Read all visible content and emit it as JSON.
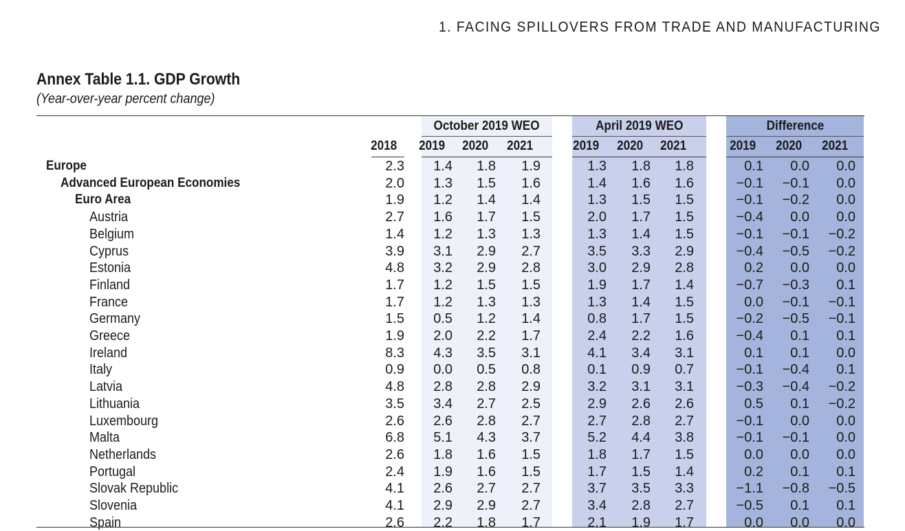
{
  "header": {
    "chapter_title": "1. FACING SPILLOVERS FROM TRADE AND MANUFACTURING"
  },
  "table": {
    "title": "Annex Table 1.1. GDP Growth",
    "subtitle": "(Year-over-year percent change)",
    "groups": {
      "october": "October 2019 WEO",
      "april": "April 2019 WEO",
      "difference": "Difference"
    },
    "year_headers": [
      "2018",
      "2019",
      "2020",
      "2021",
      "2019",
      "2020",
      "2021",
      "2019",
      "2020",
      "2021"
    ],
    "rows": [
      {
        "label": "Europe",
        "level": 0,
        "values": [
          "2.3",
          "1.4",
          "1.8",
          "1.9",
          "1.3",
          "1.8",
          "1.8",
          "0.1",
          "0.0",
          "0.0"
        ]
      },
      {
        "label": "Advanced European Economies",
        "level": 1,
        "values": [
          "2.0",
          "1.3",
          "1.5",
          "1.6",
          "1.4",
          "1.6",
          "1.6",
          "−0.1",
          "−0.1",
          "0.0"
        ]
      },
      {
        "label": "Euro Area",
        "level": 2,
        "values": [
          "1.9",
          "1.2",
          "1.4",
          "1.4",
          "1.3",
          "1.5",
          "1.5",
          "−0.1",
          "−0.2",
          "0.0"
        ]
      },
      {
        "label": "Austria",
        "level": 3,
        "values": [
          "2.7",
          "1.6",
          "1.7",
          "1.5",
          "2.0",
          "1.7",
          "1.5",
          "−0.4",
          "0.0",
          "0.0"
        ]
      },
      {
        "label": "Belgium",
        "level": 3,
        "values": [
          "1.4",
          "1.2",
          "1.3",
          "1.3",
          "1.3",
          "1.4",
          "1.5",
          "−0.1",
          "−0.1",
          "−0.2"
        ]
      },
      {
        "label": "Cyprus",
        "level": 3,
        "values": [
          "3.9",
          "3.1",
          "2.9",
          "2.7",
          "3.5",
          "3.3",
          "2.9",
          "−0.4",
          "−0.5",
          "−0.2"
        ]
      },
      {
        "label": "Estonia",
        "level": 3,
        "values": [
          "4.8",
          "3.2",
          "2.9",
          "2.8",
          "3.0",
          "2.9",
          "2.8",
          "0.2",
          "0.0",
          "0.0"
        ]
      },
      {
        "label": "Finland",
        "level": 3,
        "values": [
          "1.7",
          "1.2",
          "1.5",
          "1.5",
          "1.9",
          "1.7",
          "1.4",
          "−0.7",
          "−0.3",
          "0.1"
        ]
      },
      {
        "label": "France",
        "level": 3,
        "values": [
          "1.7",
          "1.2",
          "1.3",
          "1.3",
          "1.3",
          "1.4",
          "1.5",
          "0.0",
          "−0.1",
          "−0.1"
        ]
      },
      {
        "label": "Germany",
        "level": 3,
        "values": [
          "1.5",
          "0.5",
          "1.2",
          "1.4",
          "0.8",
          "1.7",
          "1.5",
          "−0.2",
          "−0.5",
          "−0.1"
        ]
      },
      {
        "label": "Greece",
        "level": 3,
        "values": [
          "1.9",
          "2.0",
          "2.2",
          "1.7",
          "2.4",
          "2.2",
          "1.6",
          "−0.4",
          "0.1",
          "0.1"
        ]
      },
      {
        "label": "Ireland",
        "level": 3,
        "values": [
          "8.3",
          "4.3",
          "3.5",
          "3.1",
          "4.1",
          "3.4",
          "3.1",
          "0.1",
          "0.1",
          "0.0"
        ]
      },
      {
        "label": "Italy",
        "level": 3,
        "values": [
          "0.9",
          "0.0",
          "0.5",
          "0.8",
          "0.1",
          "0.9",
          "0.7",
          "−0.1",
          "−0.4",
          "0.1"
        ]
      },
      {
        "label": "Latvia",
        "level": 3,
        "values": [
          "4.8",
          "2.8",
          "2.8",
          "2.9",
          "3.2",
          "3.1",
          "3.1",
          "−0.3",
          "−0.4",
          "−0.2"
        ]
      },
      {
        "label": "Lithuania",
        "level": 3,
        "values": [
          "3.5",
          "3.4",
          "2.7",
          "2.5",
          "2.9",
          "2.6",
          "2.6",
          "0.5",
          "0.1",
          "−0.2"
        ]
      },
      {
        "label": "Luxembourg",
        "level": 3,
        "values": [
          "2.6",
          "2.6",
          "2.8",
          "2.7",
          "2.7",
          "2.8",
          "2.7",
          "−0.1",
          "0.0",
          "0.0"
        ]
      },
      {
        "label": "Malta",
        "level": 3,
        "values": [
          "6.8",
          "5.1",
          "4.3",
          "3.7",
          "5.2",
          "4.4",
          "3.8",
          "−0.1",
          "−0.1",
          "0.0"
        ]
      },
      {
        "label": "Netherlands",
        "level": 3,
        "values": [
          "2.6",
          "1.8",
          "1.6",
          "1.5",
          "1.8",
          "1.7",
          "1.5",
          "0.0",
          "0.0",
          "0.0"
        ]
      },
      {
        "label": "Portugal",
        "level": 3,
        "values": [
          "2.4",
          "1.9",
          "1.6",
          "1.5",
          "1.7",
          "1.5",
          "1.4",
          "0.2",
          "0.1",
          "0.1"
        ]
      },
      {
        "label": "Slovak Republic",
        "level": 3,
        "values": [
          "4.1",
          "2.6",
          "2.7",
          "2.7",
          "3.7",
          "3.5",
          "3.3",
          "−1.1",
          "−0.8",
          "−0.5"
        ]
      },
      {
        "label": "Slovenia",
        "level": 3,
        "values": [
          "4.1",
          "2.9",
          "2.9",
          "2.7",
          "3.4",
          "2.8",
          "2.7",
          "−0.5",
          "0.1",
          "0.1"
        ]
      },
      {
        "label": "Spain",
        "level": 3,
        "values": [
          "2.6",
          "2.2",
          "1.8",
          "1.7",
          "2.1",
          "1.9",
          "1.7",
          "0.0",
          "0.0",
          "0.0"
        ]
      }
    ]
  }
}
